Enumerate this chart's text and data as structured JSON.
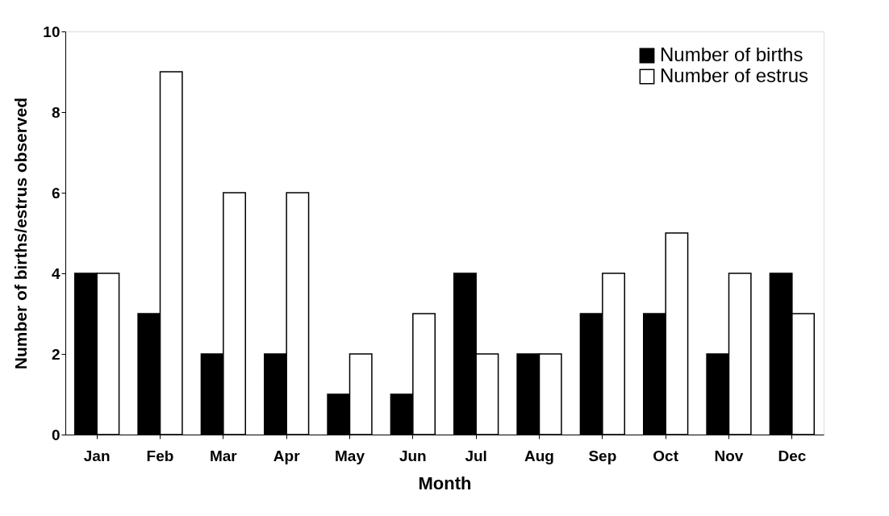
{
  "chart_data": {
    "type": "bar",
    "xlabel": "Month",
    "ylabel": "Number of births/estrus observed",
    "categories": [
      "Jan",
      "Feb",
      "Mar",
      "Apr",
      "May",
      "Jun",
      "Jul",
      "Aug",
      "Sep",
      "Oct",
      "Nov",
      "Dec"
    ],
    "series": [
      {
        "name": "Number of births",
        "color": "#000000",
        "values": [
          4,
          3,
          2,
          2,
          1,
          1,
          4,
          2,
          3,
          3,
          2,
          4
        ]
      },
      {
        "name": "Number of estrus",
        "color": "#ffffff",
        "values": [
          4,
          9,
          6,
          6,
          2,
          3,
          2,
          2,
          4,
          5,
          4,
          3
        ]
      }
    ],
    "ylim": [
      0,
      10
    ],
    "yticks": [
      0,
      2,
      4,
      6,
      8,
      10
    ],
    "grid": false,
    "legend": "top right"
  }
}
